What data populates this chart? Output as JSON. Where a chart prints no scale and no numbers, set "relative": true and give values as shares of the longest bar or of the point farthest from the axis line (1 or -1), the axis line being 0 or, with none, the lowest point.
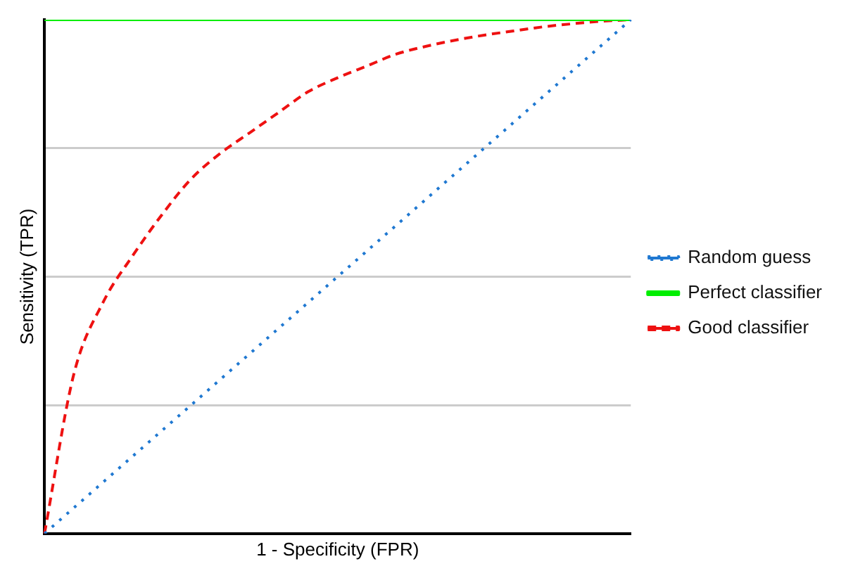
{
  "chart_data": {
    "type": "line",
    "xlabel": "1 - Specificity (FPR)",
    "ylabel": "Sensitivity (TPR)",
    "relative": true,
    "legend": "right",
    "marker": "none",
    "grid": "y",
    "categories": [
      null,
      null,
      null,
      null,
      null,
      null,
      null,
      null,
      null,
      null,
      null,
      null,
      null,
      null,
      null,
      null,
      null,
      null,
      null,
      null,
      null
    ],
    "series": [
      {
        "name": "Random guess",
        "color": "#1f78d1",
        "line_style": "dotted",
        "values": [
          0,
          0.05,
          0.1,
          0.15,
          0.2,
          0.25,
          0.3,
          0.35,
          0.4,
          0.45,
          0.5,
          0.55,
          0.6,
          0.65,
          0.7,
          0.75,
          0.8,
          0.85,
          0.9,
          0.95,
          1
        ]
      },
      {
        "name": "Perfect classifier",
        "color": "#00ee00",
        "line_style": "solid",
        "values": [
          1,
          1,
          1,
          1,
          1,
          1,
          1,
          1,
          1,
          1,
          1,
          1,
          1,
          1,
          1,
          1,
          1,
          1,
          1,
          1,
          1
        ]
      },
      {
        "name": "Good classifier",
        "color": "#ee1111",
        "line_style": "dashed",
        "values": [
          0,
          0.31,
          0.45,
          0.54,
          0.62,
          0.69,
          0.74,
          0.78,
          0.82,
          0.86,
          0.887,
          0.91,
          0.933,
          0.948,
          0.96,
          0.97,
          0.978,
          0.986,
          0.992,
          0.997,
          1
        ]
      }
    ]
  }
}
